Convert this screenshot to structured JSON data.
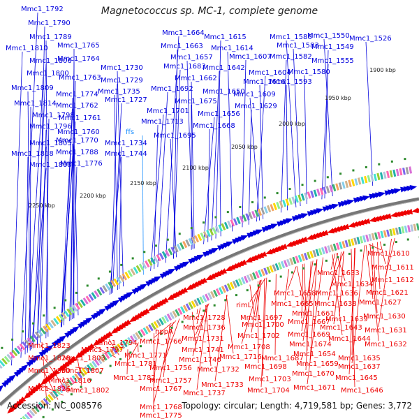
{
  "title": "Magnetococcus sp. MC-1, complete genome",
  "footer": {
    "accession": "Accession: NC_008576",
    "summary": "Topology: circular; Length: 4,719,581 bp; Genes: 3,772"
  },
  "colors": {
    "forward": "#0000dd",
    "reverse": "#ee0000",
    "backbone": "#777777",
    "rna": "#1e90ff",
    "tick": "#2e8b2e"
  },
  "ticks": [
    "1900 kbp",
    "1950 kbp",
    "2000 kbp",
    "2050 kbp",
    "2100 kbp",
    "2150 kbp",
    "2200 kbp",
    "2250 kbp"
  ],
  "top_labels": [
    "Mmc1_1792",
    "Mmc1_1790",
    "Mmc1_1789",
    "Mmc1_1810",
    "Mmc1_1765",
    "Mmc1_1806",
    "Mmc1_1764",
    "Mmc1_1800",
    "Mmc1_1763",
    "Mmc1_1809",
    "Mmc1_1774",
    "Mmc1_1814",
    "Mmc1_1762",
    "Mmc1_1798",
    "Mmc1_1761",
    "Mmc1_1796",
    "Mmc1_1760",
    "Mmc1_1805",
    "Mmc1_1770",
    "Mmc1_1788",
    "Mmc1_1818",
    "Mmc1_1808",
    "Mmc1_1776",
    "Mmc1_1730",
    "Mmc1_1729",
    "Mmc1_1735",
    "Mmc1_1727",
    "ffs",
    "Mmc1_1734",
    "Mmc1_1744",
    "Mmc1_1664",
    "Mmc1_1663",
    "Mmc1_1657",
    "Mmc1_1683",
    "Mmc1_1662",
    "Mmc1_1692",
    "Mmc1_1675",
    "Mmc1_1701",
    "Mmc1_1713",
    "Mmc1_1695",
    "Mmc1_1615",
    "Mmc1_1614",
    "Mmc1_1642",
    "Mmc1_1650",
    "Mmc1_1656",
    "Mmc1_1668",
    "Mmc1_1586",
    "Mmc1_1607",
    "Mmc1_1583",
    "Mmc1_1582",
    "Mmc1_1616",
    "Mmc1_1604",
    "Mmc1_1593",
    "Mmc1_1609",
    "Mmc1_1629",
    "Mmc1_1550",
    "Mmc1_1549",
    "Mmc1_1526",
    "Mmc1_1555",
    "Mmc1_1580"
  ],
  "bottom_labels": [
    "Mmc1_1610",
    "Mmc1_1611",
    "Mmc1_1633",
    "Mmc1_1612",
    "Mmc1_1634",
    "Mmc1_1621",
    "Mmc1_1658",
    "Mmc1_1636",
    "Mmc1_1627",
    "Mmc1_1665",
    "Mmc1_1638",
    "Mmc1_1661",
    "Mmc1_1630",
    "Mmc1_1639",
    "rimL",
    "Mmc1_1697",
    "Mmc1_1667",
    "Mmc1_1643",
    "Mmc1_1631",
    "Mmc1_1728",
    "Mmc1_1700",
    "Mmc1_1669",
    "Mmc1_1644",
    "Mmc1_1736",
    "Mmc1_1702",
    "Mmc1_1674",
    "Mmc1_1632",
    "hppA",
    "Mmc1_1731",
    "Mmc1_1708",
    "Mmc1_1654",
    "Mmc1_1635",
    "Mmc1_1766",
    "Mmc1_1741",
    "Mmc1_1687",
    "Mmc1_1659",
    "Mmc1_1637",
    "Mmc1_1823",
    "Mmc1_1794",
    "Mmc1_1746",
    "Mmc1_1716",
    "Mmc1_1698",
    "Mmc1_1670",
    "Mmc1_1797",
    "Mmc1_1771",
    "Mmc1_1703",
    "Mmc1_1645",
    "Mmc1_1828",
    "Mmc1_1803",
    "Mmc1_1781",
    "Mmc1_1756",
    "Mmc1_1732",
    "Mmc1_1646",
    "Mmc1_1830",
    "Mmc1_1807",
    "Mmc1_1782",
    "Mmc1_1757",
    "Mmc1_1733",
    "Mmc1_1671",
    "Mmc1_1816",
    "Mmc1_1704",
    "Mmc1_1826",
    "Mmc1_1802",
    "Mmc1_1767",
    "Mmc1_1737",
    "Mmc1_1768",
    "Mmc1_1775"
  ]
}
